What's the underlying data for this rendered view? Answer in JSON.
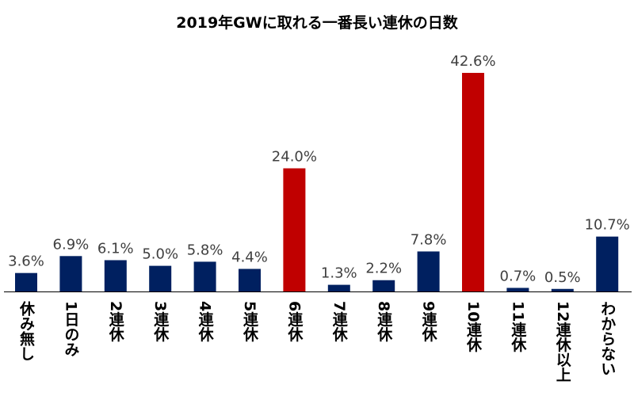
{
  "chart_data": {
    "type": "bar",
    "title": "2019年GWに取れる一番長い連休の日数",
    "categories": [
      "休み無し",
      "1日のみ",
      "2連休",
      "3連休",
      "4連休",
      "5連休",
      "6連休",
      "7連休",
      "8連休",
      "9連休",
      "10連休",
      "11連休",
      "12連休以上",
      "わからない"
    ],
    "values": [
      3.6,
      6.9,
      6.1,
      5.0,
      5.8,
      4.4,
      24.0,
      1.3,
      2.2,
      7.8,
      42.6,
      0.7,
      0.5,
      10.7
    ],
    "value_labels": [
      "3.6%",
      "6.9%",
      "6.1%",
      "5.0%",
      "5.8%",
      "4.4%",
      "24.0%",
      "1.3%",
      "2.2%",
      "7.8%",
      "42.6%",
      "0.7%",
      "0.5%",
      "10.7%"
    ],
    "highlight": [
      false,
      false,
      false,
      false,
      false,
      false,
      true,
      false,
      false,
      false,
      true,
      false,
      false,
      false
    ],
    "ylim": [
      0,
      42.6
    ],
    "grid": false,
    "legend": "none",
    "colors": {
      "default": "#002060",
      "highlight": "#c00000",
      "axis": "#000000",
      "label": "#404040"
    }
  }
}
